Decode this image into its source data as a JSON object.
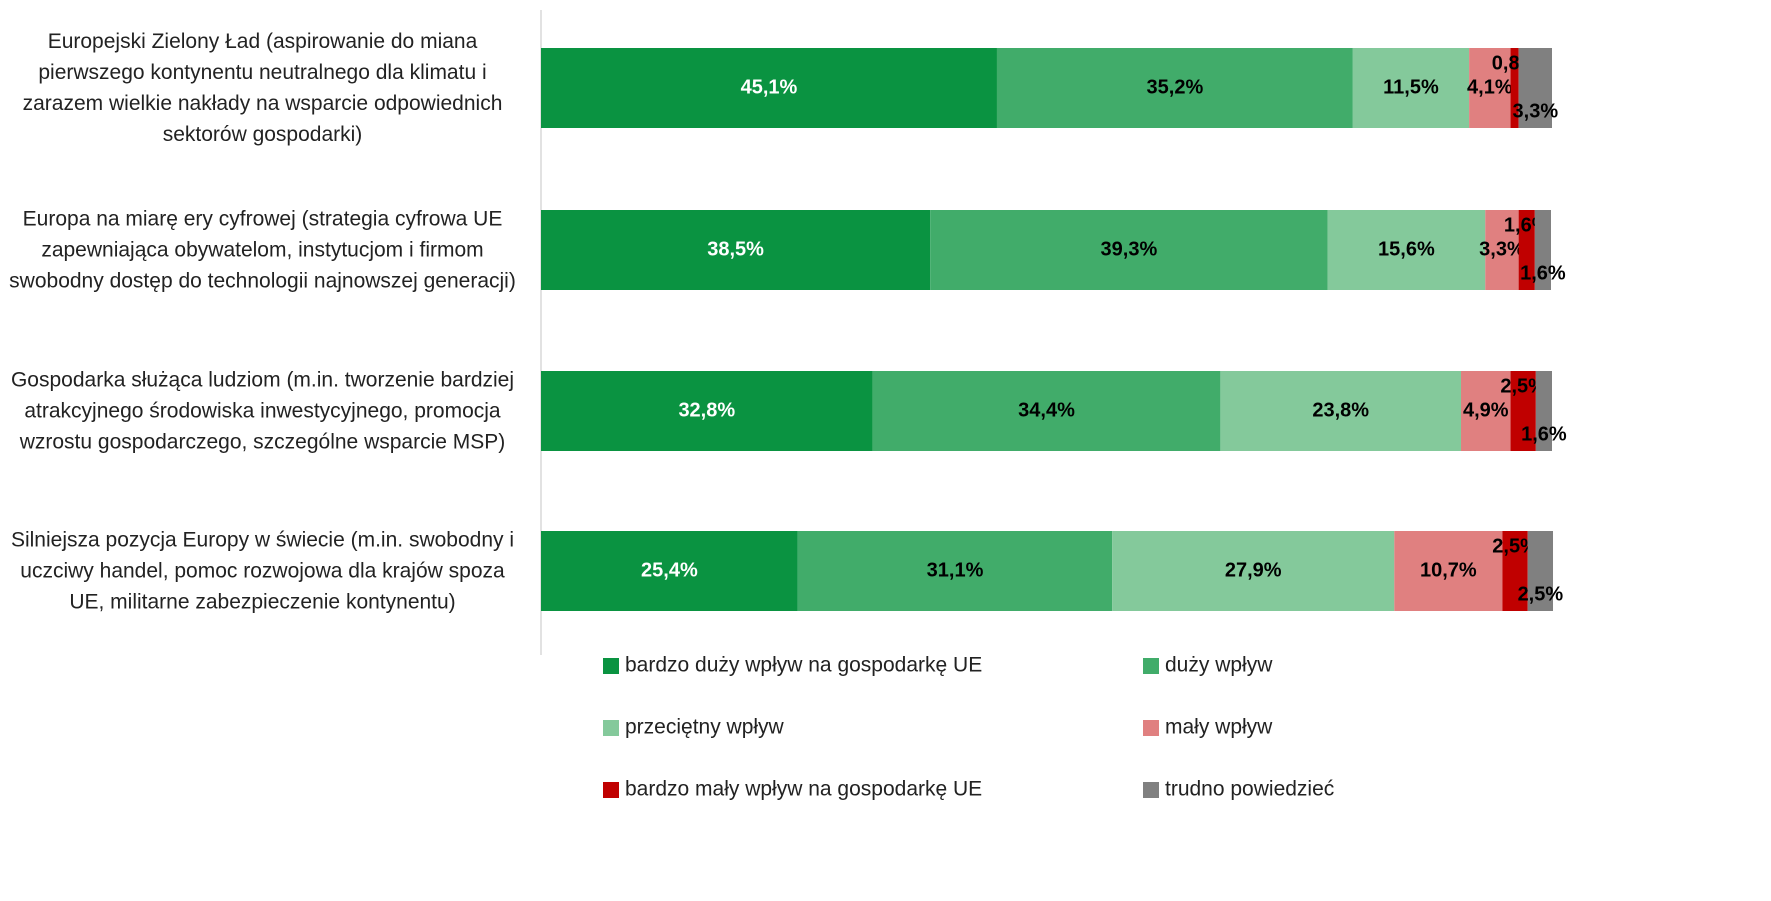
{
  "chart_data": {
    "type": "stacked-bar-horizontal",
    "categories": [
      "Europejski Zielony Ład (aspirowanie do miana pierwszego kontynentu neutralnego dla klimatu i zarazem wielkie nakłady na wsparcie odpowiednich sektorów gospodarki)",
      "Europa na miarę ery cyfrowej (strategia cyfrowa UE zapewniająca obywatelom, instytucjom i firmom swobodny dostęp do technologii najnowszej generacji)",
      "Gospodarka służąca ludziom (m.in. tworzenie bardziej atrakcyjnego środowiska inwestycyjnego, promocja wzrostu gospodarczego, szczególne wsparcie MSP)",
      "Silniejsza pozycja Europy w świecie (m.in. swobodny i uczciwy handel, pomoc rozwojowa dla krajów spoza UE, militarne zabezpieczenie kontynentu)"
    ],
    "xlim": [
      0,
      100
    ],
    "series": [
      {
        "name": "bardzo duży wpływ na gospodarkę UE",
        "color": "#0a9341",
        "values": [
          45.1,
          38.5,
          32.8,
          25.4
        ],
        "value_labels": [
          "45,1%",
          "38,5%",
          "32,8%",
          "25,4%"
        ]
      },
      {
        "name": "duży wpływ",
        "color": "#41ac6a",
        "values": [
          35.2,
          39.3,
          34.4,
          31.1
        ],
        "value_labels": [
          "35,2%",
          "39,3%",
          "34,4%",
          "31,1%"
        ]
      },
      {
        "name": "przeciętny wpływ",
        "color": "#84c99b",
        "values": [
          11.5,
          15.6,
          23.8,
          27.9
        ],
        "value_labels": [
          "11,5%",
          "15,6%",
          "23,8%",
          "27,9%"
        ]
      },
      {
        "name": "mały wpływ",
        "color": "#e08080",
        "values": [
          4.1,
          3.3,
          4.9,
          10.7
        ],
        "value_labels": [
          "4,1%",
          "3,3%",
          "4,9%",
          "10,7%"
        ]
      },
      {
        "name": "bardzo mały wpływ na gospodarkę UE",
        "color": "#c00000",
        "values": [
          0.8,
          1.6,
          2.5,
          2.5
        ],
        "value_labels": [
          "0,8%",
          "1,6%",
          "2,5%",
          "2,5%"
        ]
      },
      {
        "name": "trudno powiedzieć",
        "color": "#808080",
        "values": [
          3.3,
          1.6,
          1.6,
          2.5
        ],
        "value_labels": [
          "3,3%",
          "1,6%",
          "1,6%",
          "2,5%"
        ]
      }
    ],
    "legend": "bottom"
  }
}
